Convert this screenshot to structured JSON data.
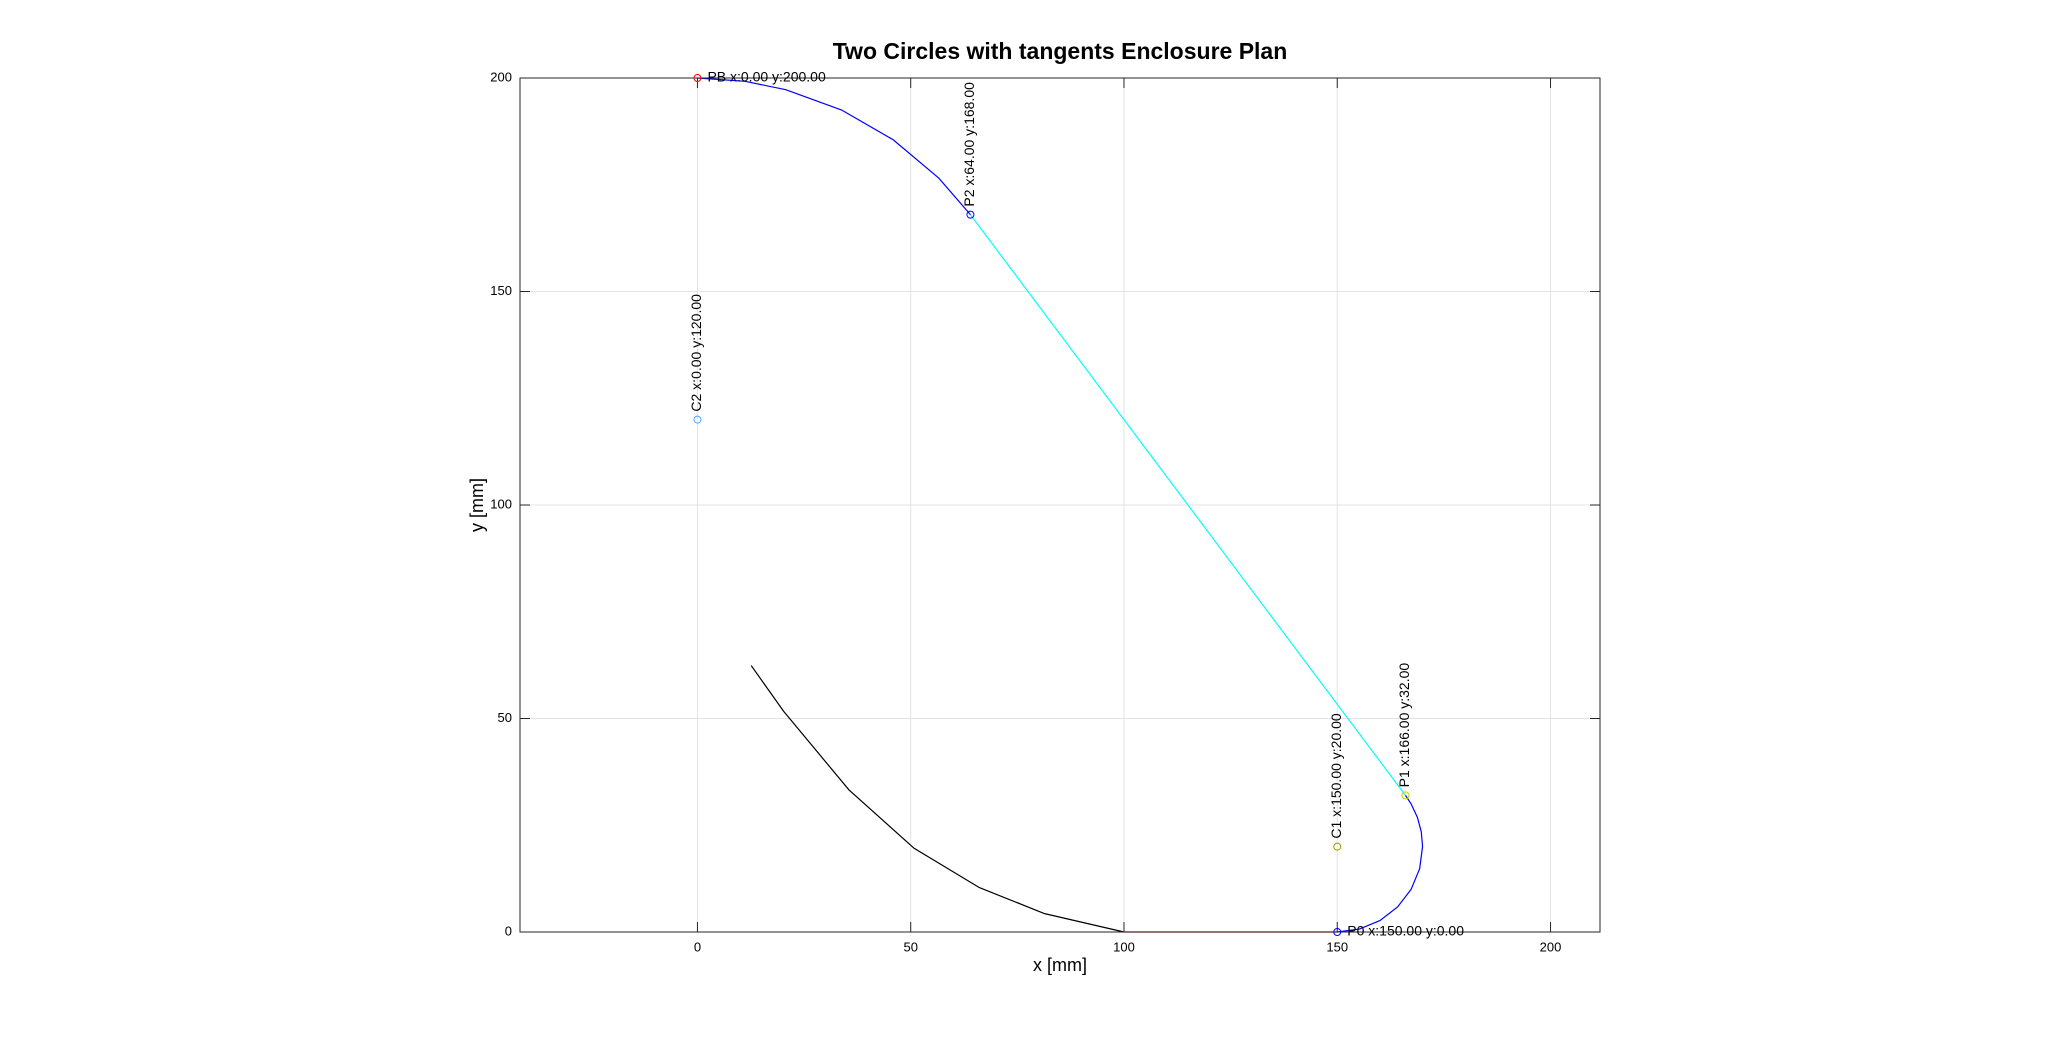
{
  "chart_data": {
    "type": "line",
    "title": "Two Circles with tangents Enclosure Plan",
    "x_label": "x [mm]",
    "y_label": "y [mm]",
    "xlim": [
      -41.6,
      211.6
    ],
    "ylim": [
      0,
      200
    ],
    "xticks": [
      0,
      50,
      100,
      150,
      200
    ],
    "yticks": [
      0,
      50,
      100,
      150,
      200
    ],
    "grid": true,
    "series": [
      {
        "color": "#000000",
        "x": [
          12.6,
          20.2,
          35.5,
          50.8,
          66.1,
          81.4,
          100
        ],
        "values": [
          62.4,
          51.7,
          33.3,
          19.6,
          10.4,
          4.3,
          0
        ]
      },
      {
        "color": "#ff0000",
        "x": [
          100,
          150
        ],
        "values": [
          0,
          0
        ]
      },
      {
        "color": "#0000ff",
        "x": [
          150,
          155.18,
          160,
          164.14,
          167.32,
          169.32,
          170,
          169.7,
          168.79,
          167.32,
          166
        ],
        "values": [
          0,
          0.68,
          2.68,
          5.86,
          10,
          14.82,
          20,
          23.47,
          26.84,
          30,
          32
        ]
      },
      {
        "color": "#00ffff",
        "x": [
          166,
          64
        ],
        "values": [
          32,
          168
        ]
      },
      {
        "color": "#0000ff",
        "x": [
          64,
          56.57,
          45.89,
          33.81,
          20.71,
          11.13,
          0
        ],
        "values": [
          168,
          176.57,
          185.53,
          192.5,
          197.27,
          199.22,
          200
        ]
      }
    ],
    "points": [
      {
        "label": "PB x:0.00 y:200.00",
        "x": 0,
        "y": 200,
        "color": "#ff0000",
        "orientation": "horizontal"
      },
      {
        "label": "P2 x:64.00 y:168.00",
        "x": 64,
        "y": 168,
        "color": "#0000ff",
        "orientation": "vertical"
      },
      {
        "label": "C2 x:0.00 y:120.00",
        "x": 0,
        "y": 120,
        "color": "#4da6ff",
        "orientation": "vertical"
      },
      {
        "label": "C1 x:150.00 y:20.00",
        "x": 150,
        "y": 20,
        "color": "#999900",
        "orientation": "vertical"
      },
      {
        "label": "P1 x:166.00 y:32.00",
        "x": 166,
        "y": 32,
        "color": "#cccc00",
        "orientation": "vertical"
      },
      {
        "label": "P0 x:150.00 y:0.00",
        "x": 150,
        "y": 0,
        "color": "#0000ff",
        "orientation": "horizontal"
      }
    ]
  }
}
